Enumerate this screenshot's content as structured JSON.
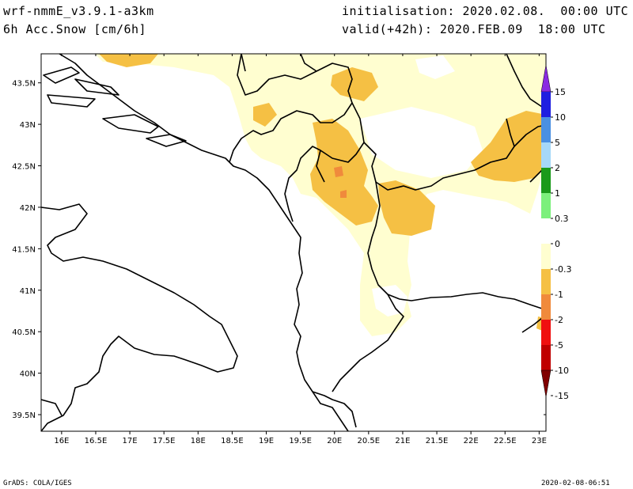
{
  "header": {
    "model": "wrf-nmmE_v3.9.1-a3km",
    "field": "6h Acc.Snow [cm/6h]",
    "init": "initialisation: 2020.02.08.  00:00 UTC",
    "valid": "valid(+42h): 2020.FEB.09  18:00 UTC"
  },
  "footer": {
    "credit": "GrADS: COLA/IGES",
    "timestamp": "2020-02-08-06:51"
  },
  "map": {
    "lon_range": [
      15.7,
      23.1
    ],
    "lat_range": [
      39.3,
      43.85
    ],
    "lat_ticks": [
      "43.5N",
      "43N",
      "42.5N",
      "42N",
      "41.5N",
      "41N",
      "40.5N",
      "40N",
      "39.5N"
    ],
    "lat_values": [
      43.5,
      43,
      42.5,
      42,
      41.5,
      41,
      40.5,
      40,
      39.5
    ],
    "lon_ticks": [
      "16E",
      "16.5E",
      "17E",
      "17.5E",
      "18E",
      "18.5E",
      "19E",
      "19.5E",
      "20E",
      "20.5E",
      "21E",
      "21.5E",
      "22E",
      "22.5E",
      "23E"
    ],
    "lon_values": [
      16,
      16.5,
      17,
      17.5,
      18,
      18.5,
      19,
      19.5,
      20,
      20.5,
      21,
      21.5,
      22,
      22.5,
      23
    ]
  },
  "colorbar": {
    "labels": [
      "15",
      "10",
      "5",
      "2",
      "1",
      "0.3",
      "0",
      "-0.3",
      "-1",
      "-2",
      "-5",
      "-10",
      "-15"
    ],
    "colors": [
      "#8a2be2",
      "#1f1fe0",
      "#4a90e2",
      "#a6d8f8",
      "#1a9a1a",
      "#7cf07c",
      "#ffffff",
      "#fffed0",
      "#f5c044",
      "#f08a3c",
      "#f01010",
      "#c00000",
      "#800000"
    ]
  },
  "snow_colors": {
    "light": "#fffed0",
    "moderate": "#f5c044",
    "heavy": "#f08a3c"
  }
}
